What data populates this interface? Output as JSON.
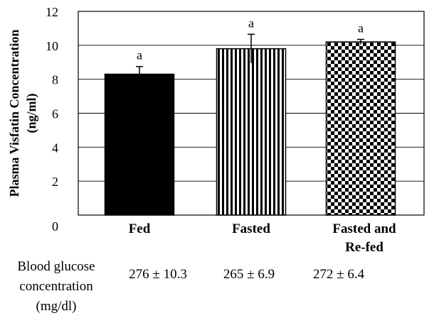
{
  "chart_data": {
    "type": "bar",
    "title": "",
    "ylabel": "Plasma Visfatin Concentration (ng/ml)",
    "ylabel_lines": [
      "Plasma Visfatin Concentration",
      "(ng/ml)"
    ],
    "xlabel": "",
    "ylim": [
      0,
      12
    ],
    "yticks": [
      0,
      2,
      4,
      6,
      8,
      10,
      12
    ],
    "grid": true,
    "categories": [
      "Fed",
      "Fasted",
      "Fasted and Re-fed"
    ],
    "category_label_lines": [
      [
        "Fed"
      ],
      [
        "Fasted"
      ],
      [
        "Fasted and",
        "Re-fed"
      ]
    ],
    "values": [
      8.3,
      9.8,
      10.2
    ],
    "errors": [
      0.45,
      0.85,
      0.15
    ],
    "significance": [
      "a",
      "a",
      "a"
    ],
    "fills": [
      "solid-black",
      "vertical-stripes",
      "checkerboard"
    ]
  },
  "glucose_table": {
    "header_lines": [
      "Blood glucose",
      "concentration",
      "(mg/dl)"
    ],
    "values": [
      "276 ± 10.3",
      "265 ± 6.9",
      "272 ± 6.4"
    ]
  }
}
